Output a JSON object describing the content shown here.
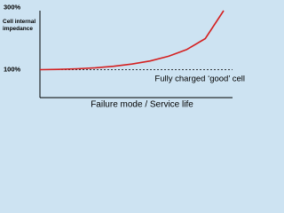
{
  "chart_data": {
    "type": "line",
    "y_label": "Cell internal impedance",
    "x_label": "Failure mode / Service life",
    "annotation": "Fully charged ‘good’ cell",
    "categories": [
      null,
      null,
      null,
      null,
      null,
      null,
      null,
      null,
      null,
      null,
      null
    ],
    "series": [
      {
        "color": "#d42020",
        "values": [
          100,
          101,
          103,
          106,
          111,
          118,
          128,
          143,
          165,
          200,
          290
        ]
      }
    ],
    "ylim": [
      10,
      310
    ],
    "yticks": [
      {
        "value": 100,
        "label": "100%"
      },
      {
        "value": 300,
        "label": "300%"
      }
    ],
    "reference_line": true
  }
}
